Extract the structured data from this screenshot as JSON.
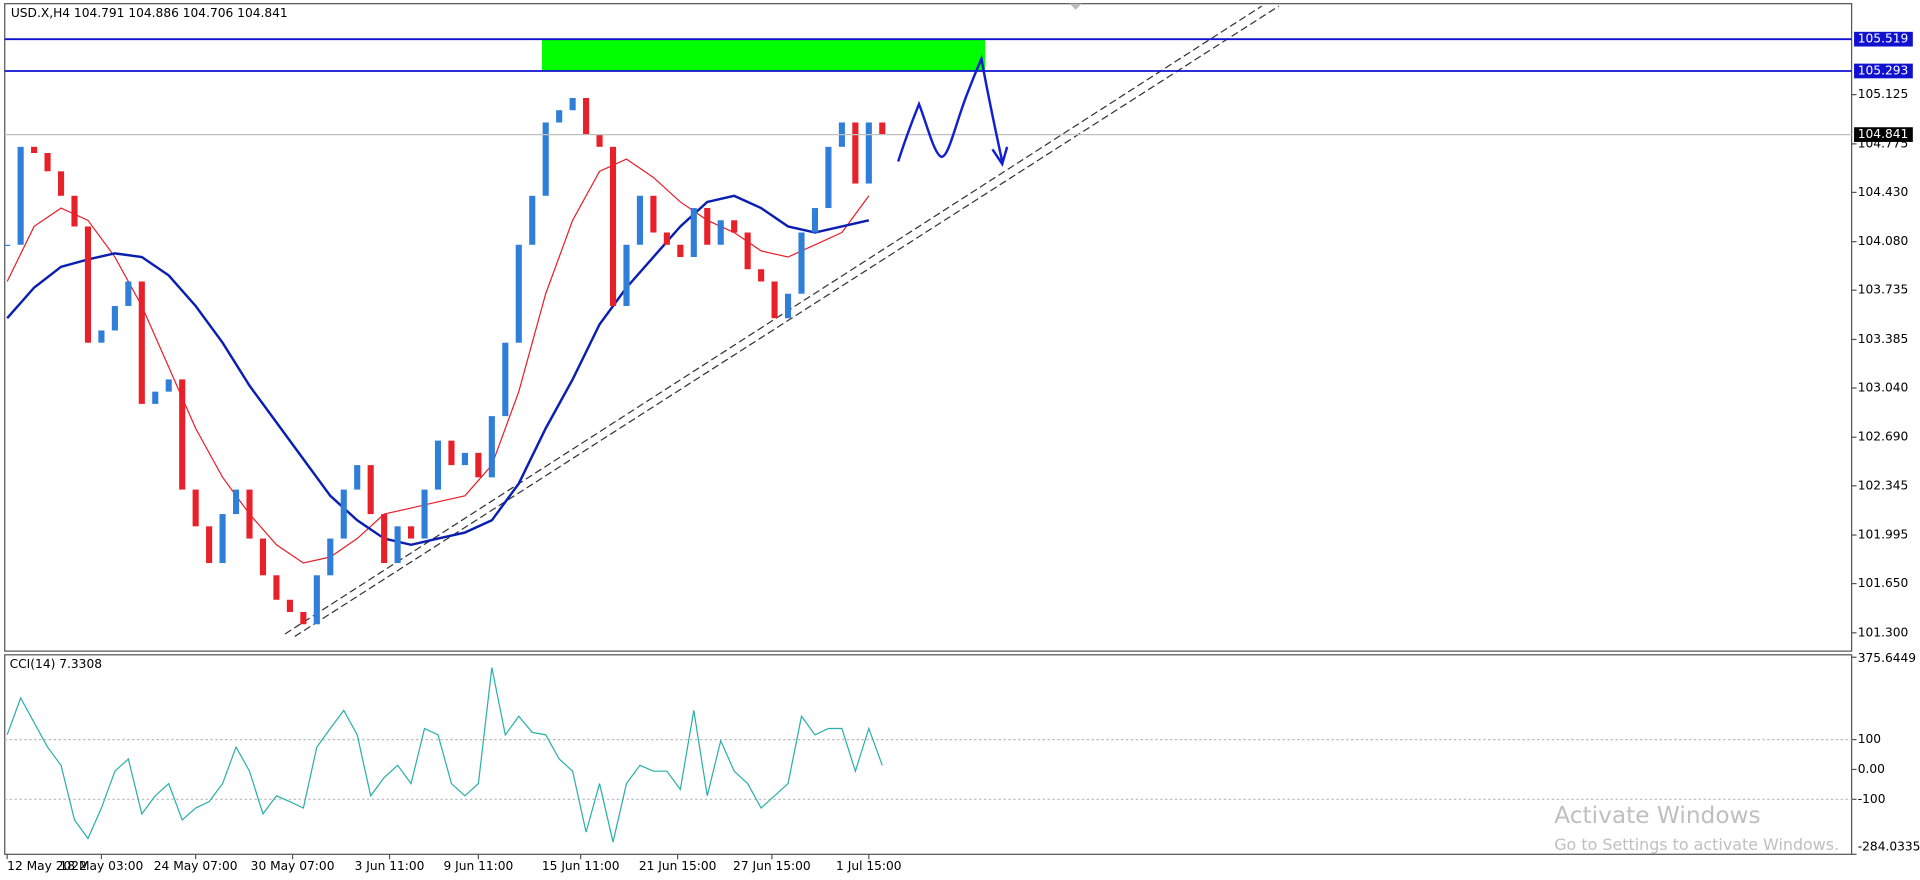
{
  "chart_data": [
    {
      "type": "candlestick",
      "title": "USD.X,H4 104.791 104.886 104.706 104.841",
      "x": [
        0,
        5,
        10,
        15,
        20,
        25,
        30,
        35,
        40,
        45,
        50,
        55,
        60,
        65,
        70,
        75,
        80,
        85,
        90,
        95,
        100,
        105,
        110,
        115,
        120,
        125,
        130,
        135,
        140,
        145,
        150,
        155,
        160,
        165,
        170,
        175,
        180,
        185,
        190,
        195,
        200,
        205,
        210,
        215,
        220,
        225,
        230,
        235,
        240,
        245,
        250,
        255,
        260,
        265,
        270,
        275,
        280,
        285,
        290,
        295,
        300,
        305,
        310,
        315,
        320,
        325
      ],
      "values": [
        104.058,
        104.754,
        104.71,
        104.58,
        104.406,
        104.188,
        103.362,
        103.449,
        103.623,
        103.797,
        102.927,
        103.014,
        103.101,
        102.318,
        102.057,
        101.796,
        102.144,
        102.318,
        101.97,
        101.709,
        101.535,
        101.448,
        101.361,
        101.709,
        101.97,
        102.318,
        102.492,
        102.144,
        101.796,
        102.057,
        101.97,
        102.318,
        102.666,
        102.492,
        102.579,
        102.405,
        102.84,
        103.362,
        104.058,
        104.406,
        104.927,
        105.014,
        105.101,
        104.84,
        104.754,
        103.623,
        104.058,
        104.406,
        104.145,
        104.058,
        103.971,
        104.319,
        104.058,
        104.232,
        104.145,
        103.884,
        103.797,
        103.536,
        103.71,
        104.145,
        104.319,
        104.754,
        104.927,
        104.493,
        104.927,
        104.841
      ],
      "up_color": "#2f7fd8",
      "down_color": "#e8202a",
      "overlays": [
        {
          "color": "#e8202a",
          "x": [
            0,
            10,
            20,
            30,
            40,
            50,
            60,
            70,
            80,
            90,
            100,
            110,
            120,
            130,
            140,
            150,
            160,
            170,
            180,
            190,
            200,
            210,
            220,
            230,
            240,
            250,
            260,
            270,
            280,
            290,
            300,
            310,
            320
          ],
          "values": [
            103.797,
            104.188,
            104.319,
            104.232,
            103.971,
            103.623,
            103.188,
            102.753,
            102.405,
            102.144,
            101.926,
            101.796,
            101.839,
            101.97,
            102.144,
            102.187,
            102.231,
            102.274,
            102.492,
            103.014,
            103.71,
            104.232,
            104.58,
            104.667,
            104.536,
            104.362,
            104.232,
            104.145,
            104.014,
            103.971,
            104.058,
            104.145,
            104.406
          ]
        },
        {
          "color": "#0a1fb0",
          "x": [
            0,
            10,
            20,
            30,
            40,
            50,
            60,
            70,
            80,
            90,
            100,
            110,
            120,
            130,
            140,
            150,
            160,
            170,
            180,
            190,
            200,
            210,
            220,
            230,
            240,
            250,
            260,
            270,
            280,
            290,
            300,
            310,
            320
          ],
          "values": [
            103.536,
            103.753,
            103.901,
            103.953,
            103.997,
            103.971,
            103.84,
            103.623,
            103.362,
            103.057,
            102.796,
            102.535,
            102.274,
            102.1,
            101.97,
            101.926,
            101.97,
            102.013,
            102.1,
            102.361,
            102.753,
            103.101,
            103.492,
            103.753,
            103.971,
            104.188,
            104.362,
            104.406,
            104.319,
            104.188,
            104.145,
            104.188,
            104.232
          ]
        }
      ],
      "levels": [
        {
          "value": 105.519,
          "color": "#1010d0"
        },
        {
          "value": 105.293,
          "color": "#1010d0"
        },
        {
          "value": 104.841,
          "color": "#000000"
        }
      ],
      "zone_color": "#00ff00",
      "xlim": [
        0,
        685
      ],
      "ylim": [
        101.17,
        105.58
      ],
      "yticks": [
        105.125,
        104.775,
        {
          "value": 104.43,
          "label": "104.430"
        },
        {
          "value": 104.08,
          "label": "104.080"
        },
        103.735,
        103.385,
        {
          "value": 103.04,
          "label": "103.040"
        },
        {
          "value": 102.69,
          "label": "102.690"
        },
        102.345,
        101.995,
        {
          "value": 101.65,
          "label": "101.650"
        },
        {
          "value": 101.3,
          "label": "101.300"
        }
      ],
      "xticks": [
        {
          "value": 0,
          "label": "12 May 2022"
        },
        {
          "value": 35,
          "label": "18 May 03:00"
        },
        {
          "value": 70,
          "label": "24 May 07:00"
        },
        {
          "value": 106,
          "label": "30 May 07:00"
        },
        {
          "value": 142,
          "label": "3 Jun 11:00"
        },
        {
          "value": 175,
          "label": "9 Jun 11:00"
        },
        {
          "value": 213,
          "label": "15 Jun 11:00"
        },
        {
          "value": 249,
          "label": "21 Jun 15:00"
        },
        {
          "value": 284,
          "label": "27 Jun 15:00"
        },
        {
          "value": 320,
          "label": "1 Jul 15:00"
        }
      ]
    },
    {
      "type": "line",
      "title": "CCI(14) 7.3308",
      "x": [
        0,
        5,
        10,
        15,
        20,
        25,
        30,
        35,
        40,
        45,
        50,
        55,
        60,
        65,
        70,
        75,
        80,
        85,
        90,
        95,
        100,
        105,
        110,
        115,
        120,
        125,
        130,
        135,
        140,
        145,
        150,
        155,
        160,
        165,
        170,
        175,
        180,
        185,
        190,
        195,
        200,
        205,
        210,
        215,
        220,
        225,
        230,
        235,
        240,
        245,
        250,
        255,
        260,
        265,
        270,
        275,
        280,
        285,
        290,
        295,
        300,
        305,
        310,
        315,
        320,
        325
      ],
      "values": [
        116,
        239,
        157,
        75,
        14,
        -169,
        -231,
        -129,
        -6,
        35,
        -149,
        -88,
        -47,
        -169,
        -129,
        -108,
        -47,
        75,
        -6,
        -149,
        -88,
        -108,
        -129,
        75,
        137,
        198,
        116,
        -88,
        -27,
        14,
        -47,
        137,
        116,
        -47,
        -88,
        -47,
        341,
        116,
        178,
        124,
        116,
        35,
        -6,
        -210,
        -47,
        -243,
        -47,
        14,
        -6,
        -6,
        -67,
        198,
        -88,
        96,
        -6,
        -47,
        -129,
        -88,
        -47,
        178,
        116,
        137,
        137,
        -6,
        137,
        14
      ],
      "color": "#2bb0a8",
      "xlim": [
        0,
        685
      ],
      "ylim": [
        -284.0335,
        375.6449
      ],
      "yticks": [
        375.6449,
        100,
        {
          "value": 0,
          "label": "0.00"
        },
        -100,
        -284.0335
      ]
    }
  ],
  "watermark": {
    "title": "Activate Windows",
    "subtitle": "Go to Settings to activate Windows."
  }
}
